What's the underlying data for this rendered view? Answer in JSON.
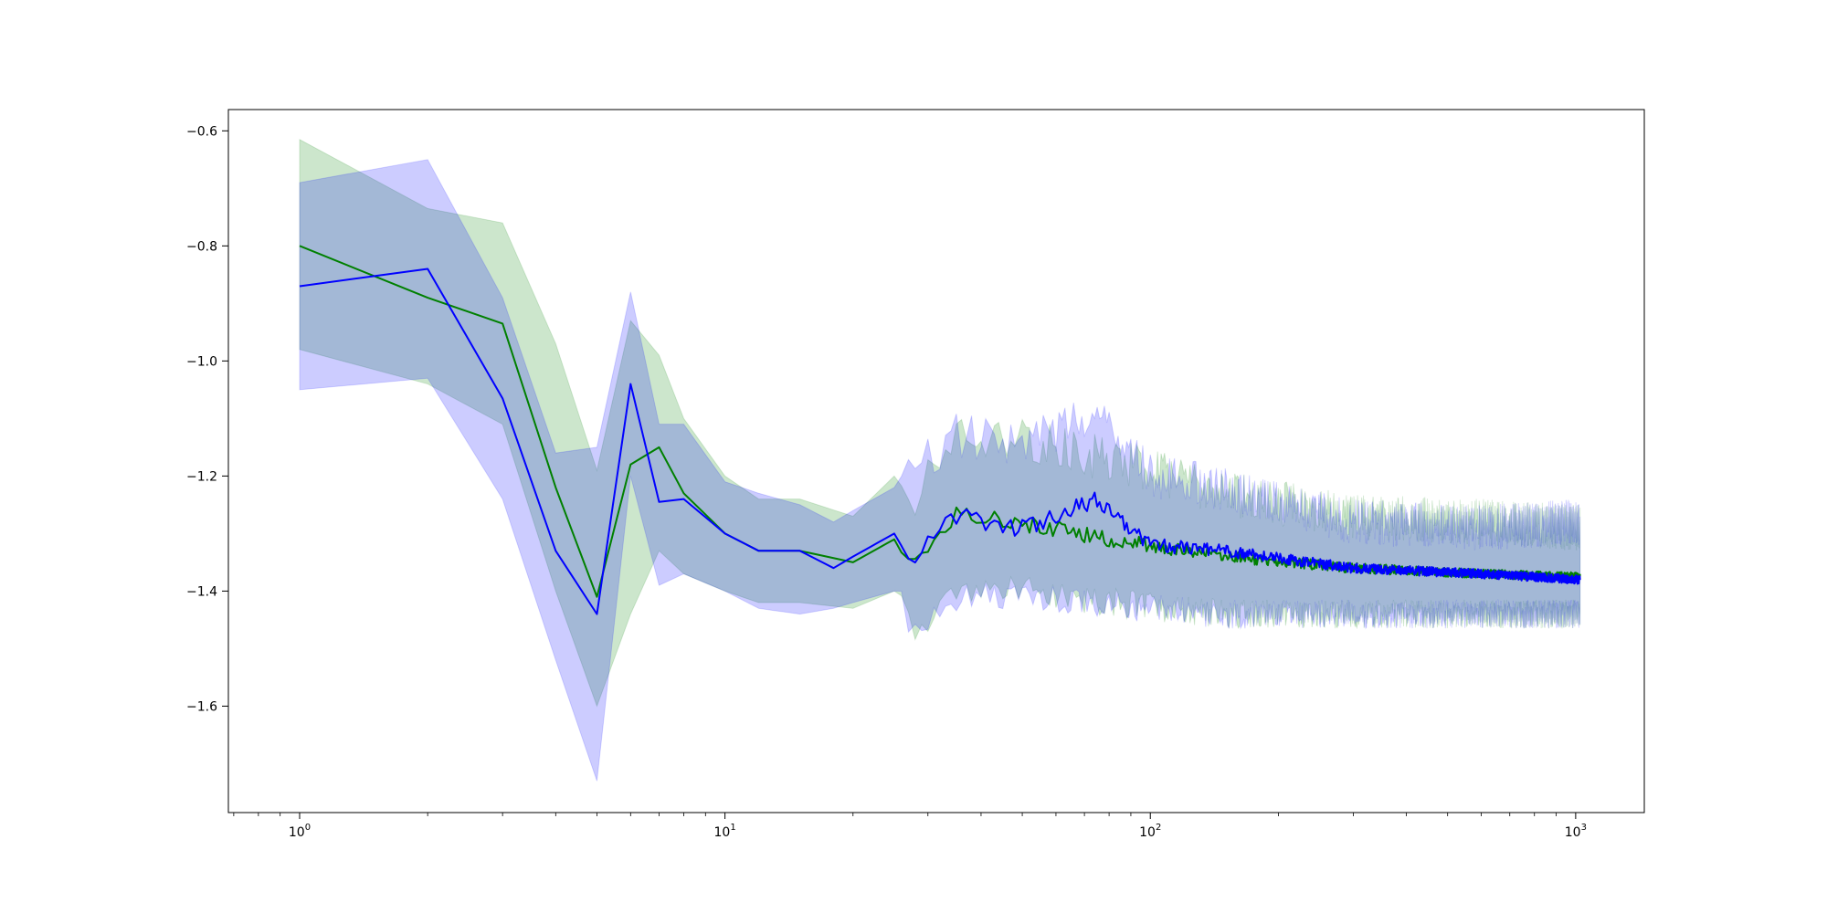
{
  "chart_data": {
    "type": "line",
    "title": "",
    "xlabel": "",
    "ylabel": "",
    "xscale": "log",
    "xlim": [
      0.68,
      1450
    ],
    "ylim": [
      -1.785,
      -0.563
    ],
    "grid": false,
    "legend": "none",
    "x_ticks": [
      {
        "value": 1,
        "base": "10",
        "exp": "0"
      },
      {
        "value": 10,
        "base": "10",
        "exp": "1"
      },
      {
        "value": 100,
        "base": "10",
        "exp": "2"
      },
      {
        "value": 1000,
        "base": "10",
        "exp": "3"
      }
    ],
    "y_ticks": [
      {
        "value": -0.6,
        "label": "−0.6"
      },
      {
        "value": -0.8,
        "label": "−0.8"
      },
      {
        "value": -1.0,
        "label": "−1.0"
      },
      {
        "value": -1.2,
        "label": "−1.2"
      },
      {
        "value": -1.4,
        "label": "−1.4"
      },
      {
        "value": -1.6,
        "label": "−1.6"
      }
    ],
    "series": [
      {
        "color": "#008000",
        "band_color": "#008000",
        "band_opacity": 0.2,
        "anchors": [
          {
            "x": 1,
            "mean": -0.8,
            "lower": -0.98,
            "upper": -0.615
          },
          {
            "x": 2,
            "mean": -0.89,
            "lower": -1.04,
            "upper": -0.735
          },
          {
            "x": 3,
            "mean": -0.935,
            "lower": -1.11,
            "upper": -0.76
          },
          {
            "x": 4,
            "mean": -1.22,
            "lower": -1.4,
            "upper": -0.97
          },
          {
            "x": 5,
            "mean": -1.41,
            "lower": -1.6,
            "upper": -1.19
          },
          {
            "x": 6,
            "mean": -1.18,
            "lower": -1.44,
            "upper": -0.93
          },
          {
            "x": 7,
            "mean": -1.15,
            "lower": -1.33,
            "upper": -0.99
          },
          {
            "x": 8,
            "mean": -1.23,
            "lower": -1.37,
            "upper": -1.1
          },
          {
            "x": 10,
            "mean": -1.3,
            "lower": -1.4,
            "upper": -1.2
          },
          {
            "x": 12,
            "mean": -1.33,
            "lower": -1.42,
            "upper": -1.24
          },
          {
            "x": 15,
            "mean": -1.33,
            "lower": -1.42,
            "upper": -1.24
          },
          {
            "x": 20,
            "mean": -1.35,
            "lower": -1.43,
            "upper": -1.27
          },
          {
            "x": 25,
            "mean": -1.31,
            "lower": -1.4,
            "upper": -1.2
          },
          {
            "x": 28,
            "mean": -1.35,
            "lower": -1.47,
            "upper": -1.24
          },
          {
            "x": 35,
            "mean": -1.26,
            "lower": -1.4,
            "upper": -1.12
          },
          {
            "x": 50,
            "mean": -1.28,
            "lower": -1.4,
            "upper": -1.14
          },
          {
            "x": 80,
            "mean": -1.31,
            "lower": -1.42,
            "upper": -1.17
          },
          {
            "x": 150,
            "mean": -1.34,
            "lower": -1.44,
            "upper": -1.23
          },
          {
            "x": 300,
            "mean": -1.36,
            "lower": -1.44,
            "upper": -1.27
          },
          {
            "x": 600,
            "mean": -1.37,
            "lower": -1.44,
            "upper": -1.28
          },
          {
            "x": 1000,
            "mean": -1.375,
            "lower": -1.44,
            "upper": -1.29
          }
        ]
      },
      {
        "color": "#0000ff",
        "band_color": "#0000ff",
        "band_opacity": 0.2,
        "anchors": [
          {
            "x": 1,
            "mean": -0.87,
            "lower": -1.05,
            "upper": -0.69
          },
          {
            "x": 2,
            "mean": -0.84,
            "lower": -1.03,
            "upper": -0.65
          },
          {
            "x": 3,
            "mean": -1.065,
            "lower": -1.24,
            "upper": -0.89
          },
          {
            "x": 4,
            "mean": -1.33,
            "lower": -1.52,
            "upper": -1.16
          },
          {
            "x": 5,
            "mean": -1.44,
            "lower": -1.73,
            "upper": -1.15
          },
          {
            "x": 6,
            "mean": -1.04,
            "lower": -1.2,
            "upper": -0.88
          },
          {
            "x": 7,
            "mean": -1.245,
            "lower": -1.39,
            "upper": -1.11
          },
          {
            "x": 8,
            "mean": -1.24,
            "lower": -1.37,
            "upper": -1.11
          },
          {
            "x": 10,
            "mean": -1.3,
            "lower": -1.4,
            "upper": -1.21
          },
          {
            "x": 12,
            "mean": -1.33,
            "lower": -1.43,
            "upper": -1.23
          },
          {
            "x": 15,
            "mean": -1.33,
            "lower": -1.44,
            "upper": -1.25
          },
          {
            "x": 18,
            "mean": -1.36,
            "lower": -1.43,
            "upper": -1.28
          },
          {
            "x": 20,
            "mean": -1.34,
            "lower": -1.42,
            "upper": -1.26
          },
          {
            "x": 25,
            "mean": -1.3,
            "lower": -1.4,
            "upper": -1.22
          },
          {
            "x": 28,
            "mean": -1.34,
            "lower": -1.47,
            "upper": -1.19
          },
          {
            "x": 35,
            "mean": -1.27,
            "lower": -1.41,
            "upper": -1.13
          },
          {
            "x": 50,
            "mean": -1.29,
            "lower": -1.41,
            "upper": -1.15
          },
          {
            "x": 75,
            "mean": -1.24,
            "lower": -1.42,
            "upper": -1.09
          },
          {
            "x": 100,
            "mean": -1.32,
            "lower": -1.43,
            "upper": -1.2
          },
          {
            "x": 150,
            "mean": -1.33,
            "lower": -1.44,
            "upper": -1.22
          },
          {
            "x": 300,
            "mean": -1.36,
            "lower": -1.44,
            "upper": -1.28
          },
          {
            "x": 600,
            "mean": -1.37,
            "lower": -1.44,
            "upper": -1.29
          },
          {
            "x": 1000,
            "mean": -1.38,
            "lower": -1.44,
            "upper": -1.28
          }
        ]
      }
    ]
  }
}
